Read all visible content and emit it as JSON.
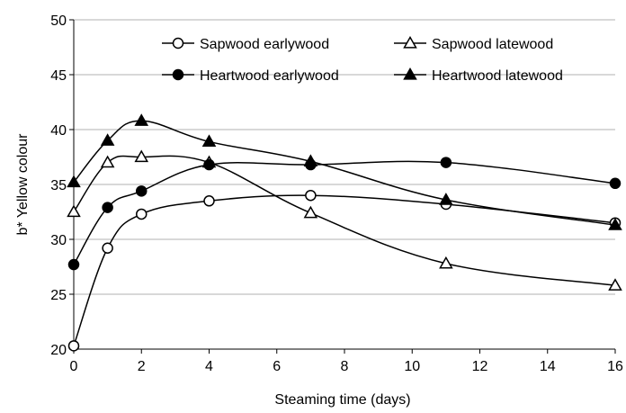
{
  "chart_data": {
    "type": "line",
    "xlabel": "Steaming time (days)",
    "ylabel": "b* Yellow colour",
    "xlim": [
      0,
      16
    ],
    "ylim": [
      20,
      50
    ],
    "x_ticks": [
      "0",
      "2",
      "4",
      "6",
      "8",
      "10",
      "12",
      "14",
      "16"
    ],
    "y_ticks": [
      "20",
      "25",
      "30",
      "35",
      "40",
      "45",
      "50"
    ],
    "grid": "horizontal",
    "legend_position": "top",
    "series": [
      {
        "name": "Sapwood earlywood",
        "marker": "circle-open",
        "x": [
          0,
          1,
          2,
          4,
          7,
          11,
          16
        ],
        "y": [
          20.3,
          29.2,
          32.3,
          33.5,
          34.0,
          33.2,
          31.5
        ]
      },
      {
        "name": "Sapwood latewood",
        "marker": "triangle-open",
        "x": [
          0,
          1,
          2,
          4,
          7,
          11,
          16
        ],
        "y": [
          32.5,
          37.0,
          37.5,
          37.0,
          32.4,
          27.8,
          25.8
        ]
      },
      {
        "name": "Heartwood earlywood",
        "marker": "circle-filled",
        "x": [
          0,
          1,
          2,
          4,
          7,
          11,
          16
        ],
        "y": [
          27.7,
          32.9,
          34.4,
          36.8,
          36.8,
          37.0,
          35.1
        ]
      },
      {
        "name": "Heartwood latewood",
        "marker": "triangle-filled",
        "x": [
          0,
          1,
          2,
          4,
          7,
          11,
          16
        ],
        "y": [
          35.2,
          39.0,
          40.8,
          38.9,
          37.1,
          33.6,
          31.3
        ]
      }
    ]
  }
}
